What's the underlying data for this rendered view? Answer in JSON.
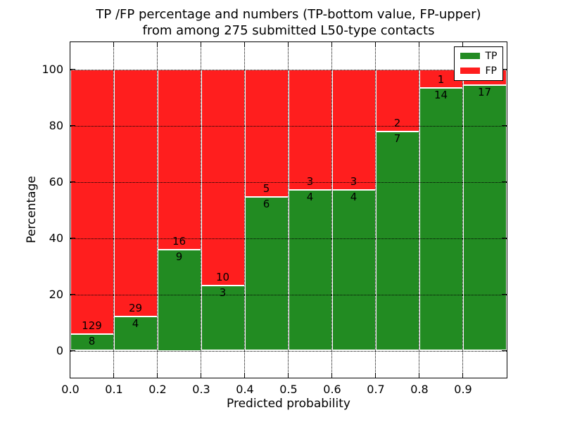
{
  "figure": {
    "title_line1": "TP /FP percentage and numbers (TP-bottom value, FP-upper)",
    "title_line2": "from among 275 submitted L50-type contacts"
  },
  "chart_data": {
    "type": "bar",
    "stacked": true,
    "normalized_to_percent": true,
    "title": "TP /FP percentage and numbers (TP-bottom value, FP-upper) from among 275 submitted L50-type contacts",
    "xlabel": "Predicted probability",
    "ylabel": "Percentage",
    "total_contacts": 275,
    "categories": [
      "0.0-0.1",
      "0.1-0.2",
      "0.2-0.3",
      "0.3-0.4",
      "0.4-0.5",
      "0.5-0.6",
      "0.6-0.7",
      "0.7-0.8",
      "0.8-0.9",
      "0.9-1.0"
    ],
    "series": [
      {
        "name": "TP",
        "counts": [
          8,
          4,
          9,
          3,
          6,
          4,
          4,
          7,
          14,
          17
        ]
      },
      {
        "name": "FP",
        "counts": [
          129,
          29,
          16,
          10,
          5,
          3,
          3,
          2,
          1,
          1
        ]
      }
    ],
    "bar_count_labels": {
      "tp": [
        "8",
        "4",
        "9",
        "3",
        "6",
        "4",
        "4",
        "7",
        "14",
        "17"
      ],
      "fp": [
        "129",
        "29",
        "16",
        "10",
        "5",
        "3",
        "3",
        "2",
        "1",
        ""
      ]
    },
    "note": "FP count label of the 0.9-1.0 bin is covered by the legend box",
    "x_tick_labels": [
      "0.0",
      "0.1",
      "0.2",
      "0.3",
      "0.4",
      "0.5",
      "0.6",
      "0.7",
      "0.8",
      "0.9"
    ],
    "y_ticks": [
      0,
      20,
      40,
      60,
      80,
      100
    ],
    "xlim": [
      0.0,
      1.0
    ],
    "ylim": [
      -9.25,
      109.75
    ],
    "grid": {
      "style": "dotted",
      "color": "#000000"
    },
    "colors": {
      "tp": "#228B22",
      "fp": "#FF1E1E",
      "bar_edge": "#FFFFFF"
    },
    "legend": {
      "position": "upper right",
      "entries": [
        {
          "label": "TP",
          "color": "#228B22"
        },
        {
          "label": "FP",
          "color": "#FF1E1E"
        }
      ]
    }
  }
}
